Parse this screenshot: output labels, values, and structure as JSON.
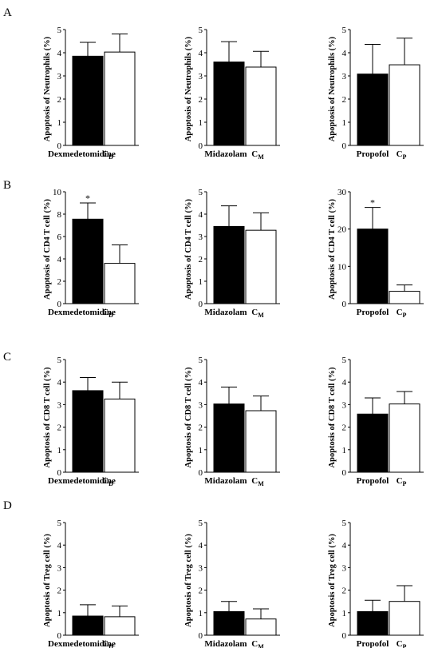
{
  "panel_letters": [
    "A",
    "B",
    "C",
    "D"
  ],
  "chart_data": [
    {
      "type": "bar",
      "panel": "A",
      "ylabel": "Apoptosis of Neutrophils (%)",
      "ylim": [
        0,
        5
      ],
      "yticks": [
        0,
        1,
        2,
        3,
        4,
        5
      ],
      "categories": [
        {
          "label": "Dexmedetomidine",
          "sub": ""
        },
        {
          "label": "C",
          "sub": "D"
        }
      ],
      "values": [
        3.85,
        4.03
      ],
      "errors": [
        0.6,
        0.78
      ],
      "fills": [
        "#000000",
        "#ffffff"
      ],
      "annotations": [
        "",
        ""
      ]
    },
    {
      "type": "bar",
      "panel": "A",
      "ylabel": "Apoptosis of Neutrophils (%)",
      "ylim": [
        0,
        5
      ],
      "yticks": [
        0,
        1,
        2,
        3,
        4,
        5
      ],
      "categories": [
        {
          "label": "Midazolam",
          "sub": ""
        },
        {
          "label": "C",
          "sub": "M"
        }
      ],
      "values": [
        3.6,
        3.38
      ],
      "errors": [
        0.88,
        0.68
      ],
      "fills": [
        "#000000",
        "#ffffff"
      ],
      "annotations": [
        "",
        ""
      ]
    },
    {
      "type": "bar",
      "panel": "A",
      "ylabel": "Apoptosis of Neutrophils (%)",
      "ylim": [
        0,
        5
      ],
      "yticks": [
        0,
        1,
        2,
        3,
        4,
        5
      ],
      "categories": [
        {
          "label": "Propofol",
          "sub": ""
        },
        {
          "label": "C",
          "sub": "P"
        }
      ],
      "values": [
        3.08,
        3.48
      ],
      "errors": [
        1.28,
        1.15
      ],
      "fills": [
        "#000000",
        "#ffffff"
      ],
      "annotations": [
        "",
        ""
      ]
    },
    {
      "type": "bar",
      "panel": "B",
      "ylabel": "Apoptosis of CD4 T cell (%)",
      "ylim": [
        0,
        10
      ],
      "yticks": [
        0,
        2,
        4,
        6,
        8,
        10
      ],
      "categories": [
        {
          "label": "Dexmedetomidine",
          "sub": ""
        },
        {
          "label": "C",
          "sub": "D"
        }
      ],
      "values": [
        7.55,
        3.6
      ],
      "errors": [
        1.45,
        1.65
      ],
      "fills": [
        "#000000",
        "#ffffff"
      ],
      "annotations": [
        "*",
        ""
      ]
    },
    {
      "type": "bar",
      "panel": "B",
      "ylabel": "Apoptosis of CD4 T cell (%)",
      "ylim": [
        0,
        5
      ],
      "yticks": [
        0,
        1,
        2,
        3,
        4,
        5
      ],
      "categories": [
        {
          "label": "Midazolam",
          "sub": ""
        },
        {
          "label": "C",
          "sub": "M"
        }
      ],
      "values": [
        3.45,
        3.28
      ],
      "errors": [
        0.92,
        0.78
      ],
      "fills": [
        "#000000",
        "#ffffff"
      ],
      "annotations": [
        "",
        ""
      ]
    },
    {
      "type": "bar",
      "panel": "B",
      "ylabel": "Apoptosis of CD4 T cell (%)",
      "ylim": [
        0,
        30
      ],
      "yticks": [
        0,
        10,
        20,
        30
      ],
      "categories": [
        {
          "label": "Propofol",
          "sub": ""
        },
        {
          "label": "C",
          "sub": "P"
        }
      ],
      "values": [
        20.0,
        3.3
      ],
      "errors": [
        5.8,
        1.7
      ],
      "fills": [
        "#000000",
        "#ffffff"
      ],
      "annotations": [
        "*",
        ""
      ]
    },
    {
      "type": "bar",
      "panel": "C",
      "ylabel": "Apoptosis of CD8 T cell (%)",
      "ylim": [
        0,
        5
      ],
      "yticks": [
        0,
        1,
        2,
        3,
        4,
        5
      ],
      "categories": [
        {
          "label": "Dexmedetomidine",
          "sub": ""
        },
        {
          "label": "C",
          "sub": "D"
        }
      ],
      "values": [
        3.62,
        3.25
      ],
      "errors": [
        0.58,
        0.75
      ],
      "fills": [
        "#000000",
        "#ffffff"
      ],
      "annotations": [
        "",
        ""
      ]
    },
    {
      "type": "bar",
      "panel": "C",
      "ylabel": "Apoptosis of CD8 T cell (%)",
      "ylim": [
        0,
        5
      ],
      "yticks": [
        0,
        1,
        2,
        3,
        4,
        5
      ],
      "categories": [
        {
          "label": "Midazolam",
          "sub": ""
        },
        {
          "label": "C",
          "sub": "M"
        }
      ],
      "values": [
        3.03,
        2.73
      ],
      "errors": [
        0.75,
        0.65
      ],
      "fills": [
        "#000000",
        "#ffffff"
      ],
      "annotations": [
        "",
        ""
      ]
    },
    {
      "type": "bar",
      "panel": "C",
      "ylabel": "Apoptosis of CD8 T cell (%)",
      "ylim": [
        0,
        5
      ],
      "yticks": [
        0,
        1,
        2,
        3,
        4,
        5
      ],
      "categories": [
        {
          "label": "Propofol",
          "sub": ""
        },
        {
          "label": "C",
          "sub": "P"
        }
      ],
      "values": [
        2.58,
        3.03
      ],
      "errors": [
        0.72,
        0.55
      ],
      "fills": [
        "#000000",
        "#ffffff"
      ],
      "annotations": [
        "",
        ""
      ]
    },
    {
      "type": "bar",
      "panel": "D",
      "ylabel": "Apoptosis of Treg cell (%)",
      "ylim": [
        0,
        5
      ],
      "yticks": [
        0,
        1,
        2,
        3,
        4,
        5
      ],
      "categories": [
        {
          "label": "Dexmedetomidine",
          "sub": ""
        },
        {
          "label": "C",
          "sub": "D"
        }
      ],
      "values": [
        0.85,
        0.82
      ],
      "errors": [
        0.5,
        0.48
      ],
      "fills": [
        "#000000",
        "#ffffff"
      ],
      "annotations": [
        "",
        ""
      ]
    },
    {
      "type": "bar",
      "panel": "D",
      "ylabel": "Apoptosis of Treg cell (%)",
      "ylim": [
        0,
        5
      ],
      "yticks": [
        0,
        1,
        2,
        3,
        4,
        5
      ],
      "categories": [
        {
          "label": "Midazolam",
          "sub": ""
        },
        {
          "label": "C",
          "sub": "M"
        }
      ],
      "values": [
        1.05,
        0.72
      ],
      "errors": [
        0.45,
        0.45
      ],
      "fills": [
        "#000000",
        "#ffffff"
      ],
      "annotations": [
        "",
        ""
      ]
    },
    {
      "type": "bar",
      "panel": "D",
      "ylabel": "Apoptosis of Treg cell (%)",
      "ylim": [
        0,
        5
      ],
      "yticks": [
        0,
        1,
        2,
        3,
        4,
        5
      ],
      "categories": [
        {
          "label": "Propofol",
          "sub": ""
        },
        {
          "label": "C",
          "sub": "P"
        }
      ],
      "values": [
        1.05,
        1.5
      ],
      "errors": [
        0.5,
        0.7
      ],
      "fills": [
        "#000000",
        "#ffffff"
      ],
      "annotations": [
        "",
        ""
      ]
    }
  ]
}
